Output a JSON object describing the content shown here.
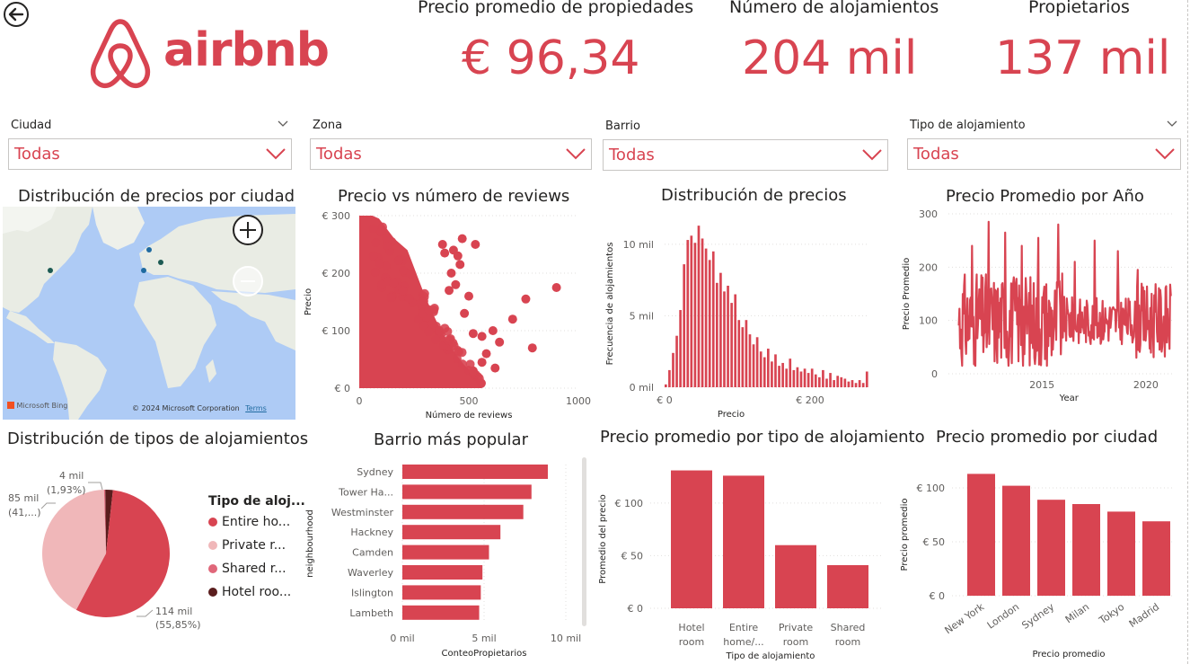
{
  "header": {
    "logo_text": "airbnb",
    "kpis": [
      {
        "label": "Precio promedio de propiedades",
        "value": "€ 96,34"
      },
      {
        "label": "Número de alojamientos",
        "value": "204 mil"
      },
      {
        "label": "Propietarios",
        "value": "137 mil"
      }
    ]
  },
  "filters": [
    {
      "label": "Ciudad",
      "value": "Todas"
    },
    {
      "label": "Zona",
      "value": "Todas"
    },
    {
      "label": "Barrio",
      "value": "Todas"
    },
    {
      "label": "Tipo de alojamiento",
      "value": "Todas"
    }
  ],
  "colors": {
    "accent": "#d84451",
    "accent_light": "#f0b7b9",
    "accent_mid": "#e0677a",
    "dark": "#5a1d1d"
  },
  "map": {
    "title": "Distribución de precios por ciudad",
    "zoom_in": "+",
    "zoom_out": "−",
    "bing": "Microsoft Bing",
    "copyright": "© 2024 Microsoft Corporation",
    "terms": "Terms"
  },
  "scatter": {
    "title": "Precio vs número de reviews",
    "chart_data": {
      "type": "scatter",
      "xlabel": "Número de reviews",
      "ylabel": "Precio",
      "xlim": [
        0,
        1000
      ],
      "ylim": [
        0,
        300
      ],
      "x_ticks": [
        "0",
        "500",
        "1000"
      ],
      "y_ticks": [
        "€ 0",
        "€ 100",
        "€ 200",
        "€ 300"
      ],
      "outliers": [
        [
          900,
          175
        ],
        [
          760,
          155
        ],
        [
          790,
          70
        ],
        [
          700,
          120
        ],
        [
          640,
          80
        ],
        [
          610,
          100
        ],
        [
          580,
          60
        ],
        [
          560,
          90
        ],
        [
          520,
          95
        ],
        [
          500,
          160
        ],
        [
          450,
          230
        ],
        [
          430,
          240
        ],
        [
          440,
          180
        ],
        [
          480,
          130
        ],
        [
          460,
          215
        ],
        [
          420,
          200
        ],
        [
          390,
          235
        ],
        [
          380,
          250
        ],
        [
          410,
          170
        ],
        [
          470,
          260
        ],
        [
          530,
          250
        ],
        [
          560,
          45
        ],
        [
          620,
          35
        ],
        [
          520,
          30
        ]
      ]
    }
  },
  "histogram": {
    "title": "Distribución de precios",
    "chart_data": {
      "type": "bar",
      "xlabel": "Precio",
      "ylabel": "Frecuencia de alojamientos",
      "x_ticks": [
        "€ 0",
        "€ 200"
      ],
      "y_ticks": [
        "0 mil",
        "5 mil",
        "10 mil"
      ],
      "ylim": [
        0,
        12000
      ],
      "values": [
        200,
        1200,
        2400,
        3600,
        5400,
        8600,
        10300,
        10600,
        10100,
        11300,
        10400,
        9700,
        8900,
        9500,
        7300,
        8000,
        6700,
        7100,
        5900,
        6500,
        4700,
        4200,
        4700,
        3700,
        3000,
        3500,
        2500,
        2100,
        2700,
        1800,
        2300,
        1500,
        1700,
        1300,
        2000,
        1200,
        1400,
        1100,
        1300,
        1000,
        1300,
        900,
        700,
        1200,
        600,
        1000,
        500,
        800,
        700,
        600,
        400,
        500,
        300,
        500,
        300,
        1100
      ]
    }
  },
  "year_line": {
    "title": "Precio Promedio por Año",
    "chart_data": {
      "type": "line",
      "xlabel": "Year",
      "ylabel": "Precio Promedio",
      "x_ticks": [
        "2015",
        "2020"
      ],
      "y_ticks": [
        "0",
        "100",
        "200",
        "300"
      ],
      "xlim": [
        2010.5,
        2021.3
      ],
      "ylim": [
        0,
        300
      ]
    }
  },
  "pie": {
    "title": "Distribución de tipos de alojamientos",
    "legend_title": "Tipo de aloj...",
    "chart_data": {
      "type": "pie",
      "slices": [
        {
          "name": "Entire ho...",
          "value": 114000,
          "pct": 55.85,
          "color": "#d84451"
        },
        {
          "name": "Private r...",
          "value": 85000,
          "pct": 41.66,
          "color": "#f0b7b9"
        },
        {
          "name": "Shared r...",
          "value": 600,
          "pct": 0.3,
          "color": "#e0677a"
        },
        {
          "name": "Hotel roo...",
          "value": 4000,
          "pct": 1.93,
          "color": "#5a1d1d"
        }
      ]
    },
    "labels": [
      {
        "line1": "114 mil",
        "line2": "(55,85%)"
      },
      {
        "line1": "85 mil",
        "line2": "(41,...)"
      },
      {
        "line1": "4 mil",
        "line2": "(1,93%)"
      }
    ]
  },
  "barrio": {
    "title": "Barrio más popular",
    "chart_data": {
      "type": "bar",
      "orientation": "horizontal",
      "xlabel": "ConteoPropietarios",
      "ylabel": "neighbourhood",
      "categories": [
        "Sydney",
        "Tower Ha...",
        "Westminster",
        "Hackney",
        "Camden",
        "Waverley",
        "Islington",
        "Lambeth"
      ],
      "values": [
        8900,
        7900,
        7400,
        6000,
        5300,
        4900,
        4800,
        4700
      ],
      "xlim": [
        0,
        10000
      ],
      "x_ticks": [
        "0 mil",
        "5 mil",
        "10 mil"
      ]
    }
  },
  "tipo": {
    "title": "Precio promedio por tipo de alojamiento",
    "chart_data": {
      "type": "bar",
      "xlabel": "Tipo de alojamiento",
      "ylabel": "Promedio del precio",
      "categories": [
        [
          "Hotel",
          "room"
        ],
        [
          "Entire",
          "home/..."
        ],
        [
          "Private",
          "room"
        ],
        [
          "Shared",
          "room"
        ]
      ],
      "values": [
        131,
        126,
        60,
        41
      ],
      "ylim": [
        0,
        140
      ],
      "y_ticks": [
        "€ 0",
        "€ 50",
        "€ 100"
      ]
    }
  },
  "ciudad": {
    "title": "Precio promedio por ciudad",
    "chart_data": {
      "type": "bar",
      "xlabel": "Precio promedio",
      "ylabel": "Precio promedio",
      "categories": [
        "New York",
        "London",
        "Sydney",
        "Milan",
        "Tokyo",
        "Madrid"
      ],
      "values": [
        113,
        102,
        89,
        85,
        78,
        69
      ],
      "ylim": [
        0,
        125
      ],
      "y_ticks": [
        "€ 0",
        "€ 50",
        "€ 100"
      ]
    }
  }
}
